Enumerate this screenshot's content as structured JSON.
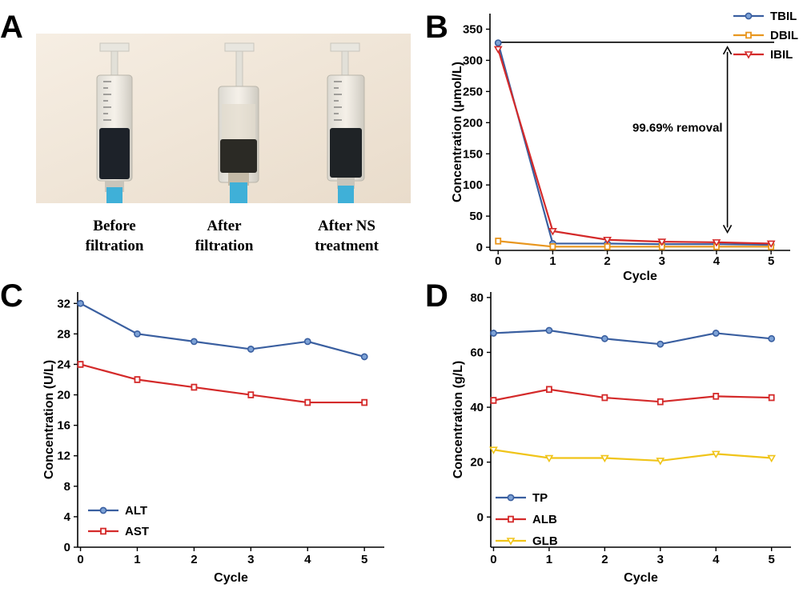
{
  "panels": {
    "a": {
      "letter": "A",
      "captions": [
        {
          "line1": "Before",
          "line2": "filtration"
        },
        {
          "line1": "After",
          "line2": "filtration"
        },
        {
          "line1": "After NS",
          "line2": "treatment"
        }
      ]
    },
    "b": {
      "letter": "B"
    },
    "c": {
      "letter": "C"
    },
    "d": {
      "letter": "D"
    }
  },
  "chart_data": [
    {
      "panel": "B",
      "type": "line",
      "xlabel": "Cycle",
      "ylabel": "Concentration (μmol/L)",
      "x": [
        0,
        1,
        2,
        3,
        4,
        5
      ],
      "xlim": [
        -0.15,
        5.35
      ],
      "ylim": [
        -5,
        375
      ],
      "yticks": [
        0,
        50,
        100,
        150,
        200,
        250,
        300,
        350
      ],
      "series": [
        {
          "name": "TBIL",
          "color": "#3a5fa0",
          "marker": "circle",
          "values": [
            328,
            6,
            6,
            5,
            5,
            4
          ]
        },
        {
          "name": "DBIL",
          "color": "#e8961e",
          "marker": "square",
          "values": [
            10,
            1,
            1,
            1,
            1,
            1
          ]
        },
        {
          "name": "IBIL",
          "color": "#d42a2a",
          "marker": "triangle",
          "values": [
            318,
            26,
            12,
            9,
            8,
            6
          ]
        }
      ],
      "legend": "top-right",
      "annotation": {
        "text": "99.69% removal",
        "reference_y": 329,
        "arrow_from_y": 329,
        "arrow_to_y": 24,
        "arrow_x": 4.2
      }
    },
    {
      "panel": "C",
      "type": "line",
      "xlabel": "Cycle",
      "ylabel": "Concentration (U/L)",
      "x": [
        0,
        1,
        2,
        3,
        4,
        5
      ],
      "xlim": [
        -0.05,
        5.35
      ],
      "ylim": [
        0,
        33.5
      ],
      "yticks": [
        0,
        4,
        8,
        12,
        16,
        20,
        24,
        28,
        32
      ],
      "series": [
        {
          "name": "ALT",
          "color": "#3a5fa0",
          "marker": "circle",
          "values": [
            32,
            28,
            27,
            26,
            27,
            25
          ]
        },
        {
          "name": "AST",
          "color": "#d42a2a",
          "marker": "square",
          "values": [
            24,
            22,
            21,
            20,
            19,
            19
          ]
        }
      ],
      "legend": "bottom-left"
    },
    {
      "panel": "D",
      "type": "line",
      "xlabel": "Cycle",
      "ylabel": "Concentration (g/L)",
      "x": [
        0,
        1,
        2,
        3,
        4,
        5
      ],
      "xlim": [
        -0.05,
        5.35
      ],
      "ylim": [
        -11,
        82
      ],
      "yticks": [
        0,
        20,
        40,
        60,
        80
      ],
      "series": [
        {
          "name": "TP",
          "color": "#3a5fa0",
          "marker": "circle",
          "values": [
            67,
            68,
            65,
            63,
            67,
            65
          ]
        },
        {
          "name": "ALB",
          "color": "#d42a2a",
          "marker": "square",
          "values": [
            42.5,
            46.5,
            43.5,
            42,
            44,
            43.5
          ]
        },
        {
          "name": "GLB",
          "color": "#f0c419",
          "marker": "triangle",
          "values": [
            24.5,
            21.5,
            21.5,
            20.5,
            23,
            21.5
          ]
        }
      ],
      "legend": "bottom-left"
    }
  ]
}
